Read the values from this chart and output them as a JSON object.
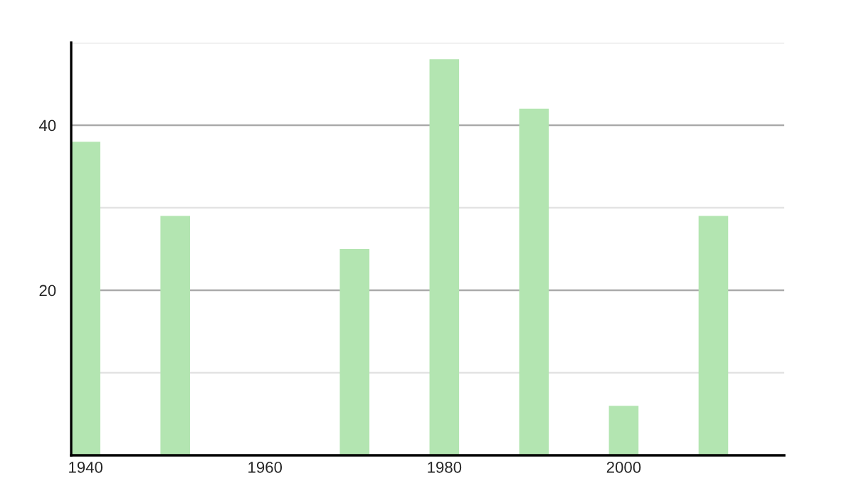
{
  "chart_data": {
    "type": "bar",
    "x": [
      1940,
      1950,
      1970,
      1980,
      1990,
      2000,
      2010
    ],
    "values": [
      38,
      29,
      25,
      48,
      42,
      6,
      29
    ],
    "color": "#b3e5b1",
    "xlim": [
      1938.4,
      2017.9
    ],
    "xticks": [
      1940,
      1960,
      1980,
      2000
    ],
    "ylim": [
      0,
      50
    ],
    "yticks": [
      {
        "value": 10,
        "label": null
      },
      20,
      {
        "value": 30,
        "label": null
      },
      40,
      {
        "value": 50,
        "label": null
      }
    ],
    "grid": "y"
  }
}
